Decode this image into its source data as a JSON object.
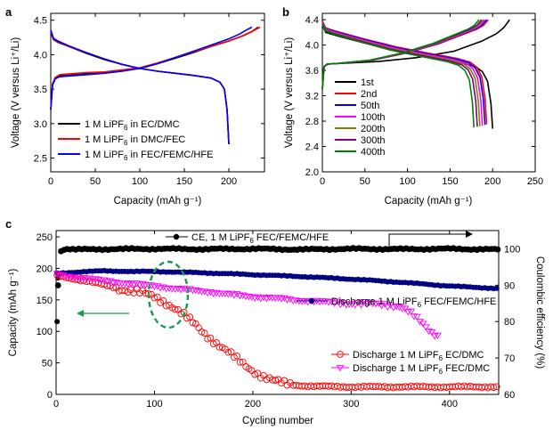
{
  "figure": {
    "panels": [
      "a",
      "b",
      "c"
    ]
  },
  "chart_data": [
    {
      "id": "a",
      "type": "line",
      "xlabel": "Capacity (mAh g⁻¹)",
      "ylabel": "Voltage (V versus Li⁺/Li)",
      "xlim": [
        0,
        240
      ],
      "ylim": [
        2.3,
        4.6
      ],
      "xticks": [
        0,
        50,
        100,
        150,
        200
      ],
      "yticks": [
        2.5,
        3.0,
        3.5,
        4.0,
        4.5
      ],
      "legend_position": "lower-left",
      "series": [
        {
          "name": "1 M LiPF₆ in EC/DMC",
          "color": "#000000",
          "charge": {
            "x": [
              0,
              2,
              5,
              10,
              20,
              40,
              60,
              80,
              100,
              120,
              140,
              160,
              180,
              200,
              215,
              225,
              233
            ],
            "y": [
              3.2,
              3.56,
              3.65,
              3.69,
              3.7,
              3.72,
              3.74,
              3.77,
              3.8,
              3.87,
              3.95,
              4.03,
              4.12,
              4.2,
              4.27,
              4.33,
              4.4
            ]
          },
          "discharge": {
            "x": [
              0,
              3,
              8,
              20,
              40,
              60,
              80,
              100,
              120,
              140,
              160,
              180,
              190,
              195,
              198,
              200
            ],
            "y": [
              4.33,
              4.22,
              4.18,
              4.12,
              4.02,
              3.93,
              3.86,
              3.8,
              3.76,
              3.73,
              3.7,
              3.66,
              3.6,
              3.5,
              3.2,
              2.7
            ]
          }
        },
        {
          "name": "1 M LiPF₆ in DMC/FEC",
          "color": "#ff0000",
          "charge": {
            "x": [
              0,
              2,
              5,
              10,
              20,
              40,
              60,
              80,
              100,
              120,
              140,
              160,
              180,
              200,
              215,
              225,
              235
            ],
            "y": [
              3.2,
              3.58,
              3.67,
              3.71,
              3.72,
              3.74,
              3.75,
              3.78,
              3.81,
              3.88,
              3.96,
              4.04,
              4.12,
              4.2,
              4.27,
              4.33,
              4.4
            ]
          },
          "discharge": {
            "x": [
              0,
              3,
              8,
              20,
              40,
              60,
              80,
              100,
              120,
              140,
              160,
              180,
              190,
              195,
              198,
              200
            ],
            "y": [
              4.34,
              4.23,
              4.19,
              4.12,
              4.03,
              3.94,
              3.86,
              3.8,
              3.76,
              3.73,
              3.7,
              3.66,
              3.6,
              3.5,
              3.2,
              2.7
            ]
          }
        },
        {
          "name": "1 M LiPF₆ in FEC/FEMC/HFE",
          "color": "#0000ff",
          "charge": {
            "x": [
              0,
              2,
              5,
              10,
              20,
              40,
              60,
              80,
              100,
              120,
              140,
              160,
              180,
              200,
              212,
              220,
              226
            ],
            "y": [
              3.2,
              3.56,
              3.65,
              3.68,
              3.69,
              3.71,
              3.73,
              3.76,
              3.8,
              3.87,
              3.96,
              4.05,
              4.14,
              4.23,
              4.3,
              4.36,
              4.4
            ]
          },
          "discharge": {
            "x": [
              0,
              3,
              8,
              20,
              40,
              60,
              80,
              100,
              120,
              140,
              160,
              180,
              190,
              195,
              198,
              200
            ],
            "y": [
              4.36,
              4.24,
              4.2,
              4.13,
              4.03,
              3.94,
              3.86,
              3.8,
              3.76,
              3.73,
              3.7,
              3.66,
              3.6,
              3.5,
              3.2,
              2.7
            ]
          }
        }
      ]
    },
    {
      "id": "b",
      "type": "line",
      "xlabel": "Capacity (mAh g⁻¹)",
      "ylabel": "Voltage (V versus Li⁺/Li)",
      "xlim": [
        0,
        250
      ],
      "ylim": [
        2.0,
        4.5
      ],
      "xticks": [
        0,
        50,
        100,
        150,
        200,
        250
      ],
      "yticks": [
        2.0,
        2.4,
        2.8,
        3.2,
        3.6,
        4.0,
        4.4
      ],
      "legend_position": "middle-right",
      "series": [
        {
          "name": "1st",
          "color": "#000000",
          "end_charge": 220,
          "end_discharge": 200
        },
        {
          "name": "2nd",
          "color": "#ff0000",
          "end_charge": 195,
          "end_discharge": 193
        },
        {
          "name": "50th",
          "color": "#0000ff",
          "end_charge": 193,
          "end_discharge": 191
        },
        {
          "name": "100th",
          "color": "#ff00ff",
          "end_charge": 191,
          "end_discharge": 188
        },
        {
          "name": "200th",
          "color": "#808000",
          "end_charge": 189,
          "end_discharge": 185
        },
        {
          "name": "300th",
          "color": "#800080",
          "end_charge": 187,
          "end_discharge": 182
        },
        {
          "name": "400th",
          "color": "#008000",
          "end_charge": 184,
          "end_discharge": 178
        }
      ]
    },
    {
      "id": "c",
      "type": "scatter",
      "xlabel": "Cycling number",
      "ylabel": "Capacity (mAh g⁻¹)",
      "y2label": "Coulombic efficiency (%)",
      "xlim": [
        0,
        450
      ],
      "ylim": [
        0,
        260
      ],
      "y2lim": [
        60,
        105
      ],
      "xticks": [
        0,
        100,
        200,
        300,
        400
      ],
      "yticks": [
        0,
        50,
        100,
        150,
        200,
        250
      ],
      "y2ticks": [
        60,
        70,
        80,
        90,
        100
      ],
      "series": [
        {
          "name": "CE, 1 M LiPF₆ FEC/FEMC/HFE",
          "color": "#000000",
          "marker": "filled-circle",
          "axis": "right",
          "x": [
            1,
            2,
            3,
            5,
            10,
            20,
            50,
            100,
            150,
            200,
            250,
            300,
            350,
            400,
            450
          ],
          "y": [
            80,
            90,
            98,
            99.5,
            100,
            99.8,
            99.9,
            100,
            99.9,
            100,
            99.8,
            100,
            99.9,
            100,
            99.8
          ]
        },
        {
          "name": "Discharge 1 M LiPF₆ FEC/FEMC/HFE",
          "color": "#000080",
          "marker": "filled-circle",
          "axis": "left",
          "x": [
            1,
            10,
            30,
            50,
            80,
            100,
            150,
            200,
            250,
            300,
            350,
            400,
            450
          ],
          "y": [
            192,
            193,
            195,
            196,
            195,
            195,
            193,
            190,
            187,
            183,
            178,
            172,
            168
          ]
        },
        {
          "name": "Discharge 1 M LiPF₆ EC/DMC",
          "color": "#ff0000",
          "marker": "open-circle",
          "axis": "left",
          "x": [
            1,
            10,
            20,
            40,
            60,
            80,
            100,
            110,
            120,
            130,
            140,
            150,
            160,
            170,
            180,
            190,
            200,
            210,
            220,
            230,
            240,
            260,
            300,
            350,
            400,
            450
          ],
          "y": [
            188,
            186,
            183,
            177,
            170,
            163,
            155,
            148,
            138,
            125,
            112,
            98,
            86,
            73,
            60,
            48,
            38,
            30,
            22,
            17,
            15,
            13,
            12,
            12,
            12,
            12
          ]
        },
        {
          "name": "Discharge 1 M LiPF₆ FEC/DMC",
          "color": "#ff00ff",
          "marker": "open-triangle-down",
          "axis": "left",
          "x": [
            1,
            20,
            50,
            80,
            100,
            120,
            140,
            160,
            180,
            200,
            220,
            240,
            260,
            280,
            300,
            320,
            340,
            350,
            360,
            370,
            380,
            390
          ],
          "y": [
            190,
            186,
            180,
            175,
            172,
            168,
            165,
            162,
            158,
            155,
            153,
            150,
            148,
            146,
            145,
            143,
            142,
            140,
            130,
            115,
            100,
            92
          ]
        }
      ],
      "annotations": {
        "ce_label": "CE, 1 M LiPF₆ FEC/FEMC/HFE",
        "discharge_label": "Discharge 1 M LiPF₆ FEC/FEMC/HFE",
        "legend_ecdmc": "Discharge 1 M LiPF₆ EC/DMC",
        "legend_fecdmc": "Discharge 1 M LiPF₆ FEC/DMC"
      }
    }
  ],
  "legend_text": {
    "a": [
      {
        "pre": "1 M LiPF",
        "sub": "6",
        "post": " in EC/DMC"
      },
      {
        "pre": "1 M LiPF",
        "sub": "6",
        "post": " in DMC/FEC"
      },
      {
        "pre": "1 M LiPF",
        "sub": "6",
        "post": " in FEC/FEMC/HFE"
      }
    ],
    "c": {
      "ce": {
        "pre": "CE, 1 M LiPF",
        "sub": "6",
        "post": " FEC/FEMC/HFE"
      },
      "dis": {
        "pre": "Discharge 1 M LiPF",
        "sub": "6",
        "post": " FEC/FEMC/HFE"
      },
      "ecdmc": {
        "pre": "Discharge 1 M LiPF",
        "sub": "6",
        "post": " EC/DMC"
      },
      "fecdmc": {
        "pre": "Discharge 1 M LiPF",
        "sub": "6",
        "post": " FEC/DMC"
      }
    }
  }
}
